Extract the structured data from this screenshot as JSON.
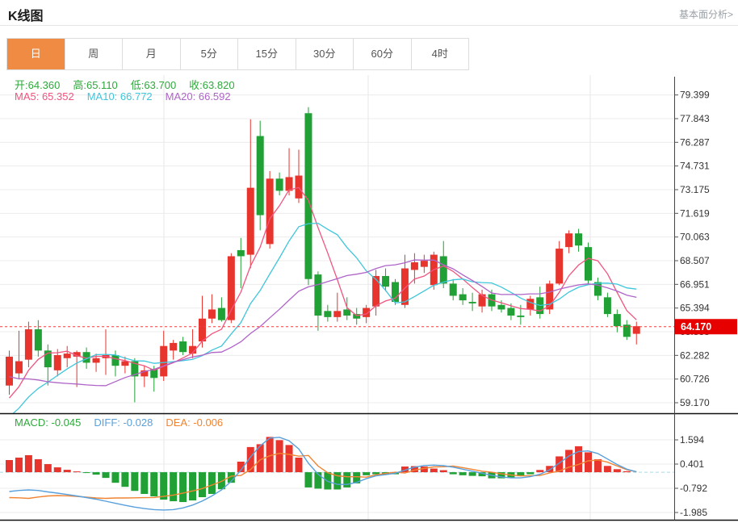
{
  "header": {
    "title": "K线图",
    "link": "基本面分析>"
  },
  "tabs": {
    "items": [
      {
        "label": "日",
        "selected": true
      },
      {
        "label": "周",
        "selected": false
      },
      {
        "label": "月",
        "selected": false
      },
      {
        "label": "5分",
        "selected": false
      },
      {
        "label": "15分",
        "selected": false
      },
      {
        "label": "30分",
        "selected": false
      },
      {
        "label": "60分",
        "selected": false
      },
      {
        "label": "4时",
        "selected": false
      }
    ]
  },
  "main_legend": {
    "ohlc": [
      "开:64.360",
      "高:65.110",
      "低:63.700",
      "收:63.820"
    ],
    "ma": [
      "MA5: 65.352",
      "MA10: 66.772",
      "MA20: 66.592"
    ]
  },
  "macd_legend": {
    "items": [
      "MACD: -0.045",
      "DIFF: -0.028",
      "DEA: -0.006"
    ]
  },
  "price_axis": {
    "last_price_label": "64.170"
  },
  "chart_data": {
    "type": "candlestick+macd",
    "title": "K线图 日K",
    "legend_position": "top-left",
    "grid": true,
    "price_ticks": [
      79.399,
      77.843,
      76.287,
      74.731,
      73.175,
      71.619,
      70.063,
      68.507,
      66.951,
      65.394,
      63.838,
      62.282,
      60.726,
      59.17
    ],
    "price_range": [
      58.2,
      80.4
    ],
    "macd_ticks": [
      1.594,
      0.401,
      -0.792,
      -1.985
    ],
    "macd_range": [
      -2.4,
      1.99
    ],
    "last_price": 64.17,
    "ma_periods": [
      5,
      10,
      20
    ],
    "ma_values_shown": {
      "MA5": 65.352,
      "MA10": 66.772,
      "MA20": 66.592
    },
    "macd_values_shown": {
      "MACD": -0.045,
      "DIFF": -0.028,
      "DEA": -0.006
    },
    "ohlc_shown": {
      "open": 64.36,
      "high": 65.11,
      "low": 63.7,
      "close": 63.82
    },
    "ma_seed": [
      64.5,
      64.3,
      64.0,
      63.8,
      63.6,
      63.4,
      63.2,
      63.0,
      62.8,
      62.6,
      56.2,
      56.6,
      57.0,
      57.4,
      57.8,
      58.2,
      58.6,
      59.0,
      59.4
    ],
    "candles": [
      [
        60.3,
        62.6,
        59.7,
        62.2
      ],
      [
        61.1,
        63.9,
        60.7,
        61.9
      ],
      [
        62.0,
        64.5,
        61.5,
        64.0
      ],
      [
        64.0,
        64.6,
        62.2,
        62.6
      ],
      [
        62.6,
        63.0,
        60.3,
        61.5
      ],
      [
        61.3,
        62.7,
        60.9,
        62.3
      ],
      [
        62.1,
        62.9,
        61.5,
        62.4
      ],
      [
        62.2,
        62.6,
        60.2,
        62.5
      ],
      [
        62.5,
        62.8,
        61.4,
        61.8
      ],
      [
        61.8,
        62.4,
        61.2,
        62.1
      ],
      [
        62.1,
        64.0,
        61.0,
        62.3
      ],
      [
        62.3,
        62.6,
        60.9,
        61.6
      ],
      [
        61.6,
        62.2,
        61.1,
        61.9
      ],
      [
        61.9,
        62.1,
        59.2,
        60.9
      ],
      [
        60.9,
        61.6,
        60.2,
        61.3
      ],
      [
        61.4,
        61.6,
        59.9,
        60.8
      ],
      [
        60.9,
        63.9,
        60.6,
        62.9
      ],
      [
        62.6,
        63.3,
        62.0,
        63.1
      ],
      [
        63.2,
        63.5,
        62.3,
        62.5
      ],
      [
        62.4,
        64.0,
        62.1,
        62.9
      ],
      [
        63.2,
        66.2,
        62.8,
        64.7
      ],
      [
        64.7,
        66.3,
        64.4,
        65.3
      ],
      [
        65.4,
        66.1,
        64.5,
        64.6
      ],
      [
        64.6,
        69.0,
        64.4,
        68.8
      ],
      [
        69.2,
        70.0,
        66.7,
        68.8
      ],
      [
        68.9,
        77.8,
        68.0,
        73.3
      ],
      [
        76.7,
        77.7,
        70.5,
        71.5
      ],
      [
        69.6,
        74.4,
        69.3,
        73.9
      ],
      [
        73.9,
        74.3,
        72.8,
        73.1
      ],
      [
        73.1,
        75.9,
        72.8,
        74.0
      ],
      [
        72.6,
        75.8,
        72.3,
        74.1
      ],
      [
        78.2,
        78.6,
        66.9,
        67.3
      ],
      [
        67.6,
        67.8,
        63.9,
        64.9
      ],
      [
        65.2,
        65.6,
        64.5,
        64.8
      ],
      [
        64.8,
        66.4,
        64.5,
        65.2
      ],
      [
        65.3,
        66.1,
        64.6,
        64.9
      ],
      [
        65.0,
        65.4,
        64.3,
        64.7
      ],
      [
        64.8,
        65.6,
        64.4,
        65.4
      ],
      [
        65.5,
        67.9,
        64.9,
        67.5
      ],
      [
        67.5,
        68.0,
        66.5,
        66.8
      ],
      [
        67.1,
        67.3,
        65.6,
        65.8
      ],
      [
        65.6,
        68.9,
        65.4,
        68.0
      ],
      [
        67.9,
        69.0,
        67.0,
        68.4
      ],
      [
        68.1,
        68.9,
        67.7,
        68.5
      ],
      [
        66.9,
        69.1,
        66.6,
        68.9
      ],
      [
        68.8,
        69.8,
        66.7,
        67.0
      ],
      [
        67.0,
        67.3,
        65.9,
        66.2
      ],
      [
        66.3,
        66.7,
        65.6,
        65.9
      ],
      [
        65.8,
        66.4,
        65.2,
        65.7
      ],
      [
        65.5,
        66.6,
        65.1,
        66.3
      ],
      [
        66.3,
        66.6,
        65.2,
        65.5
      ],
      [
        65.6,
        65.9,
        65.1,
        65.3
      ],
      [
        65.4,
        65.7,
        64.6,
        64.9
      ],
      [
        64.9,
        65.6,
        64.3,
        64.8
      ],
      [
        65.3,
        66.2,
        64.9,
        66.0
      ],
      [
        66.1,
        66.8,
        64.7,
        65.0
      ],
      [
        65.3,
        67.2,
        65.0,
        67.0
      ],
      [
        67.0,
        69.8,
        66.9,
        69.3
      ],
      [
        69.4,
        70.5,
        69.0,
        70.3
      ],
      [
        70.3,
        70.6,
        69.1,
        69.5
      ],
      [
        69.4,
        69.7,
        66.9,
        67.2
      ],
      [
        67.1,
        67.4,
        65.9,
        66.2
      ],
      [
        66.1,
        66.4,
        64.8,
        65.0
      ],
      [
        65.0,
        65.3,
        63.8,
        64.2
      ],
      [
        64.3,
        64.6,
        63.3,
        63.5
      ],
      [
        63.7,
        64.5,
        63.0,
        64.2
      ]
    ],
    "macd_hist": [
      0.6,
      0.72,
      0.84,
      0.64,
      0.4,
      0.24,
      0.12,
      0.04,
      -0.04,
      -0.12,
      -0.28,
      -0.52,
      -0.72,
      -0.92,
      -1.07,
      -1.19,
      -1.35,
      -1.43,
      -1.47,
      -1.39,
      -1.23,
      -1.07,
      -0.84,
      -0.52,
      0.52,
      1.24,
      1.38,
      1.74,
      1.58,
      1.34,
      0.72,
      -0.75,
      -0.81,
      -0.85,
      -0.85,
      -0.75,
      -0.55,
      -0.15,
      -0.1,
      -0.12,
      -0.1,
      0.28,
      0.3,
      0.28,
      0.18,
      0.1,
      -0.1,
      -0.15,
      -0.18,
      -0.2,
      -0.3,
      -0.3,
      -0.28,
      -0.2,
      -0.1,
      0.11,
      0.31,
      0.78,
      1.1,
      1.28,
      0.98,
      0.64,
      0.31,
      0.15,
      0.05,
      0.0
    ],
    "macd_diff": [
      -0.95,
      -0.9,
      -0.87,
      -0.9,
      -0.97,
      -1.03,
      -1.1,
      -1.17,
      -1.25,
      -1.33,
      -1.43,
      -1.53,
      -1.63,
      -1.72,
      -1.79,
      -1.84,
      -1.86,
      -1.84,
      -1.76,
      -1.62,
      -1.42,
      -1.17,
      -0.87,
      -0.45,
      0.1,
      0.75,
      1.3,
      1.68,
      1.72,
      1.55,
      1.15,
      0.45,
      -0.1,
      -0.45,
      -0.6,
      -0.6,
      -0.5,
      -0.32,
      -0.18,
      -0.12,
      -0.05,
      0.1,
      0.25,
      0.33,
      0.35,
      0.32,
      0.25,
      0.15,
      0.05,
      -0.05,
      -0.15,
      -0.23,
      -0.28,
      -0.28,
      -0.22,
      -0.1,
      0.12,
      0.45,
      0.8,
      1.02,
      1.05,
      0.92,
      0.65,
      0.38,
      0.15,
      0.02
    ],
    "colors": {
      "up": "#e7352e",
      "down": "#21a135",
      "ma5": "#f0557f",
      "ma10": "#3fc6db",
      "ma20": "#af64c8",
      "diff": "#58a0dc",
      "dea": "#f08432",
      "last_price_line": "#ee3f3f",
      "badge_bg": "#e60000",
      "tab_active": "#ef8b42",
      "grid": "#ececec",
      "axis": "#444444",
      "zero_dash": "#a9dbe6"
    }
  }
}
